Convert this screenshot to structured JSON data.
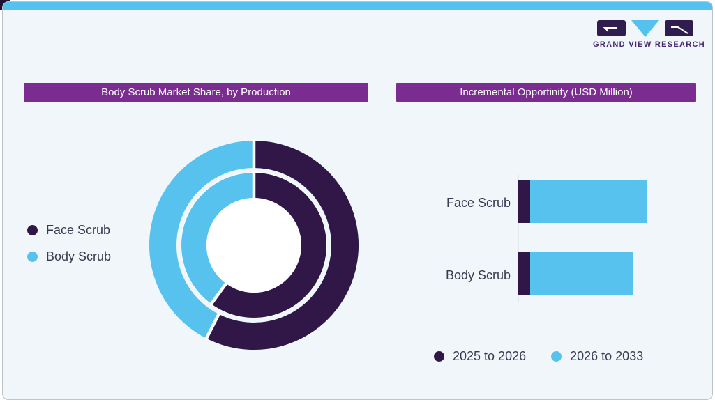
{
  "brand": {
    "logo_text": "GRAND VIEW RESEARCH"
  },
  "colors": {
    "series_dark_purple": "#301747",
    "series_light_blue": "#57c2ee",
    "title_bar_purple": "#7b2c90",
    "topbar_blue": "#55c1ee",
    "card_background": "#f0f6fa",
    "label_text": "#3a3a4e",
    "logo_dark": "#2e1d4e",
    "logo_text_purple": "#45286d"
  },
  "left_panel": {
    "title": "Body Scrub Market Share, by Production",
    "legend": [
      {
        "label": "Face Scrub",
        "color": "#301747"
      },
      {
        "label": "Body Scrub",
        "color": "#57c2ee"
      }
    ]
  },
  "right_panel": {
    "title": "Incremental Opportinity (USD Million)",
    "categories": [
      {
        "label": "Face Scrub"
      },
      {
        "label": "Body Scrub"
      }
    ],
    "legend": [
      {
        "label": "2025 to 2026",
        "color": "#301747"
      },
      {
        "label": "2026 to 2033",
        "color": "#57c2ee"
      }
    ]
  },
  "chart_data": [
    {
      "type": "pie",
      "variant": "double-ring donut",
      "title": "Body Scrub Market Share, by Production",
      "slice_order_clockwise_from_top": [
        "Face Scrub",
        "Body Scrub"
      ],
      "slice_colors": [
        "#301747",
        "#57c2ee"
      ],
      "rings": [
        {
          "name": "outer ring",
          "values_pct": [
            57.5,
            42.5
          ]
        },
        {
          "name": "inner ring",
          "values_pct": [
            60,
            40
          ]
        }
      ],
      "note": "no numeric labels shown; percentages estimated from arc angles",
      "legend_position": "left",
      "legend_entries": [
        "Face Scrub",
        "Body Scrub"
      ]
    },
    {
      "type": "bar",
      "orientation": "horizontal",
      "stacked": true,
      "title": "Incremental Opportinity (USD Million)",
      "categories": [
        "Face Scrub",
        "Body Scrub"
      ],
      "series": [
        {
          "name": "2025 to 2026",
          "color": "#301747",
          "values_relative": [
            17,
            17
          ]
        },
        {
          "name": "2026 to 2033",
          "color": "#57c2ee",
          "values_relative": [
            167,
            147
          ]
        }
      ],
      "note": "no axis values or data labels shown; values are relative lengths estimated from pixels",
      "legend_position": "bottom",
      "value_labels_shown": false,
      "grid": false
    }
  ]
}
